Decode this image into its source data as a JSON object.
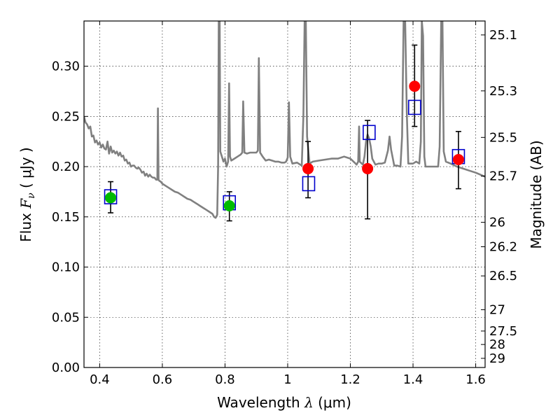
{
  "chart_data": {
    "type": "scatter",
    "title": "",
    "xlabel": {
      "prefix": "Wavelength  ",
      "symbol": "λ",
      "unit": " (μm)"
    },
    "ylabel": {
      "prefix": "Flux  ",
      "symbol": "F",
      "subscript": "ν",
      "unit": "  ( μJy )"
    },
    "y2label": "Magnitude (AB)",
    "xlim": [
      0.35,
      1.63
    ],
    "ylim": [
      0.0,
      0.345
    ],
    "grid": true,
    "colors": {
      "model": "#808080",
      "photometry_green": "#00bb00",
      "photometry_red": "#ff0000",
      "model_boxes": "#0000cc",
      "errorbar": "#000000"
    },
    "xticks": [
      {
        "value": 0.4,
        "label": "0.4"
      },
      {
        "value": 0.6,
        "label": "0.6"
      },
      {
        "value": 0.8,
        "label": "0.8"
      },
      {
        "value": 1.0,
        "label": "1"
      },
      {
        "value": 1.2,
        "label": "1.2"
      },
      {
        "value": 1.4,
        "label": "1.4"
      },
      {
        "value": 1.6,
        "label": "1.6"
      }
    ],
    "yticks": [
      {
        "value": 0.0,
        "label": "0.00"
      },
      {
        "value": 0.05,
        "label": "0.05"
      },
      {
        "value": 0.1,
        "label": "0.10"
      },
      {
        "value": 0.15,
        "label": "0.15"
      },
      {
        "value": 0.2,
        "label": "0.20"
      },
      {
        "value": 0.25,
        "label": "0.25"
      },
      {
        "value": 0.3,
        "label": "0.30"
      }
    ],
    "y2ticks": [
      {
        "mag": 25.1,
        "label": "25.1"
      },
      {
        "mag": 25.3,
        "label": "25.3"
      },
      {
        "mag": 25.5,
        "label": "25.5"
      },
      {
        "mag": 25.7,
        "label": "25.7"
      },
      {
        "mag": 26.0,
        "label": "26"
      },
      {
        "mag": 26.2,
        "label": "26.2"
      },
      {
        "mag": 26.5,
        "label": "26.5"
      },
      {
        "mag": 27.0,
        "label": "27"
      },
      {
        "mag": 27.5,
        "label": "27.5"
      },
      {
        "mag": 28.0,
        "label": "28"
      },
      {
        "mag": 29.0,
        "label": "29"
      }
    ],
    "model_spectrum": [
      [
        0.35,
        0.25
      ],
      [
        0.355,
        0.244
      ],
      [
        0.36,
        0.242
      ],
      [
        0.365,
        0.238
      ],
      [
        0.37,
        0.24
      ],
      [
        0.375,
        0.23
      ],
      [
        0.38,
        0.231
      ],
      [
        0.385,
        0.224
      ],
      [
        0.39,
        0.226
      ],
      [
        0.395,
        0.222
      ],
      [
        0.4,
        0.224
      ],
      [
        0.405,
        0.219
      ],
      [
        0.41,
        0.222
      ],
      [
        0.415,
        0.218
      ],
      [
        0.42,
        0.217
      ],
      [
        0.425,
        0.225
      ],
      [
        0.43,
        0.213
      ],
      [
        0.435,
        0.22
      ],
      [
        0.44,
        0.214
      ],
      [
        0.445,
        0.216
      ],
      [
        0.45,
        0.213
      ],
      [
        0.455,
        0.215
      ],
      [
        0.46,
        0.211
      ],
      [
        0.465,
        0.214
      ],
      [
        0.47,
        0.21
      ],
      [
        0.475,
        0.211
      ],
      [
        0.48,
        0.206
      ],
      [
        0.485,
        0.207
      ],
      [
        0.49,
        0.203
      ],
      [
        0.495,
        0.204
      ],
      [
        0.5,
        0.2
      ],
      [
        0.505,
        0.201
      ],
      [
        0.51,
        0.201
      ],
      [
        0.515,
        0.199
      ],
      [
        0.52,
        0.198
      ],
      [
        0.525,
        0.199
      ],
      [
        0.53,
        0.197
      ],
      [
        0.535,
        0.194
      ],
      [
        0.54,
        0.195
      ],
      [
        0.545,
        0.191
      ],
      [
        0.55,
        0.193
      ],
      [
        0.555,
        0.19
      ],
      [
        0.56,
        0.192
      ],
      [
        0.565,
        0.19
      ],
      [
        0.57,
        0.189
      ],
      [
        0.575,
        0.189
      ],
      [
        0.58,
        0.187
      ],
      [
        0.584,
        0.187
      ],
      [
        0.586,
        0.258
      ],
      [
        0.588,
        0.187
      ],
      [
        0.59,
        0.186
      ],
      [
        0.595,
        0.185
      ],
      [
        0.6,
        0.183
      ],
      [
        0.61,
        0.181
      ],
      [
        0.62,
        0.179
      ],
      [
        0.63,
        0.177
      ],
      [
        0.64,
        0.175
      ],
      [
        0.65,
        0.174
      ],
      [
        0.66,
        0.172
      ],
      [
        0.67,
        0.17
      ],
      [
        0.68,
        0.168
      ],
      [
        0.69,
        0.167
      ],
      [
        0.7,
        0.165
      ],
      [
        0.71,
        0.163
      ],
      [
        0.72,
        0.161
      ],
      [
        0.73,
        0.159
      ],
      [
        0.74,
        0.157
      ],
      [
        0.75,
        0.155
      ],
      [
        0.76,
        0.153
      ],
      [
        0.765,
        0.15
      ],
      [
        0.77,
        0.149
      ],
      [
        0.775,
        0.152
      ],
      [
        0.778,
        0.2
      ],
      [
        0.78,
        0.345
      ],
      [
        0.783,
        0.345
      ],
      [
        0.785,
        0.215
      ],
      [
        0.79,
        0.21
      ],
      [
        0.795,
        0.205
      ],
      [
        0.8,
        0.208
      ],
      [
        0.805,
        0.2
      ],
      [
        0.81,
        0.205
      ],
      [
        0.813,
        0.283
      ],
      [
        0.816,
        0.21
      ],
      [
        0.82,
        0.206
      ],
      [
        0.83,
        0.208
      ],
      [
        0.84,
        0.21
      ],
      [
        0.85,
        0.212
      ],
      [
        0.855,
        0.214
      ],
      [
        0.858,
        0.265
      ],
      [
        0.862,
        0.214
      ],
      [
        0.87,
        0.213
      ],
      [
        0.88,
        0.214
      ],
      [
        0.89,
        0.214
      ],
      [
        0.9,
        0.214
      ],
      [
        0.905,
        0.216
      ],
      [
        0.908,
        0.308
      ],
      [
        0.912,
        0.214
      ],
      [
        0.92,
        0.21
      ],
      [
        0.93,
        0.206
      ],
      [
        0.94,
        0.207
      ],
      [
        0.95,
        0.206
      ],
      [
        0.96,
        0.205
      ],
      [
        0.97,
        0.205
      ],
      [
        0.98,
        0.204
      ],
      [
        0.99,
        0.204
      ],
      [
        0.995,
        0.205
      ],
      [
        1.0,
        0.209
      ],
      [
        1.004,
        0.264
      ],
      [
        1.008,
        0.21
      ],
      [
        1.015,
        0.203
      ],
      [
        1.03,
        0.204
      ],
      [
        1.04,
        0.202
      ],
      [
        1.045,
        0.201
      ],
      [
        1.05,
        0.25
      ],
      [
        1.054,
        0.345
      ],
      [
        1.058,
        0.345
      ],
      [
        1.062,
        0.23
      ],
      [
        1.07,
        0.203
      ],
      [
        1.08,
        0.205
      ],
      [
        1.1,
        0.206
      ],
      [
        1.12,
        0.207
      ],
      [
        1.14,
        0.208
      ],
      [
        1.16,
        0.208
      ],
      [
        1.18,
        0.21
      ],
      [
        1.2,
        0.208
      ],
      [
        1.22,
        0.202
      ],
      [
        1.225,
        0.205
      ],
      [
        1.228,
        0.24
      ],
      [
        1.23,
        0.205
      ],
      [
        1.24,
        0.202
      ],
      [
        1.245,
        0.21
      ],
      [
        1.25,
        0.225
      ],
      [
        1.255,
        0.232
      ],
      [
        1.26,
        0.228
      ],
      [
        1.265,
        0.22
      ],
      [
        1.27,
        0.208
      ],
      [
        1.28,
        0.202
      ],
      [
        1.29,
        0.203
      ],
      [
        1.3,
        0.203
      ],
      [
        1.31,
        0.204
      ],
      [
        1.32,
        0.216
      ],
      [
        1.325,
        0.23
      ],
      [
        1.33,
        0.217
      ],
      [
        1.34,
        0.201
      ],
      [
        1.35,
        0.201
      ],
      [
        1.36,
        0.2
      ],
      [
        1.365,
        0.23
      ],
      [
        1.37,
        0.345
      ],
      [
        1.375,
        0.345
      ],
      [
        1.38,
        0.255
      ],
      [
        1.385,
        0.203
      ],
      [
        1.39,
        0.203
      ],
      [
        1.4,
        0.203
      ],
      [
        1.41,
        0.205
      ],
      [
        1.42,
        0.203
      ],
      [
        1.425,
        0.225
      ],
      [
        1.428,
        0.345
      ],
      [
        1.432,
        0.33
      ],
      [
        1.436,
        0.21
      ],
      [
        1.44,
        0.2
      ],
      [
        1.45,
        0.2
      ],
      [
        1.46,
        0.2
      ],
      [
        1.47,
        0.2
      ],
      [
        1.48,
        0.2
      ],
      [
        1.485,
        0.22
      ],
      [
        1.49,
        0.345
      ],
      [
        1.494,
        0.345
      ],
      [
        1.498,
        0.215
      ],
      [
        1.505,
        0.205
      ],
      [
        1.52,
        0.203
      ],
      [
        1.54,
        0.2
      ],
      [
        1.56,
        0.198
      ],
      [
        1.58,
        0.196
      ],
      [
        1.6,
        0.194
      ],
      [
        1.63,
        0.19
      ]
    ],
    "photometry_green": [
      {
        "x": 0.435,
        "y": 0.169,
        "yerr": [
          0.154,
          0.185
        ]
      },
      {
        "x": 0.814,
        "y": 0.161,
        "yerr": [
          0.146,
          0.175
        ]
      }
    ],
    "photometry_red": [
      {
        "x": 1.065,
        "y": 0.198,
        "yerr": [
          0.169,
          0.225
        ]
      },
      {
        "x": 1.255,
        "y": 0.198,
        "yerr": [
          0.148,
          0.246
        ]
      },
      {
        "x": 1.405,
        "y": 0.28,
        "yerr": [
          0.24,
          0.321
        ]
      },
      {
        "x": 1.545,
        "y": 0.207,
        "yerr": [
          0.178,
          0.235
        ]
      }
    ],
    "model_boxes": [
      {
        "x": 0.435,
        "y": 0.17
      },
      {
        "x": 0.814,
        "y": 0.164
      },
      {
        "x": 1.067,
        "y": 0.183
      },
      {
        "x": 1.26,
        "y": 0.234
      },
      {
        "x": 1.405,
        "y": 0.259
      },
      {
        "x": 1.545,
        "y": 0.21
      }
    ]
  }
}
